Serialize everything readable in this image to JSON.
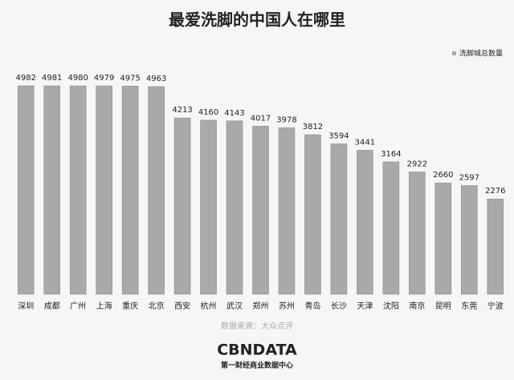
{
  "chart_data": {
    "type": "bar",
    "title": "最爱洗脚的中国人在哪里",
    "categories": [
      "深圳",
      "成都",
      "广州",
      "上海",
      "重庆",
      "北京",
      "西安",
      "杭州",
      "武汉",
      "郑州",
      "苏州",
      "青岛",
      "长沙",
      "天津",
      "沈阳",
      "南京",
      "昆明",
      "东莞",
      "宁波"
    ],
    "series": [
      {
        "name": "洗脚城总数量",
        "color": "#a9a9a9",
        "values": [
          4982,
          4981,
          4980,
          4979,
          4975,
          4963,
          4213,
          4160,
          4143,
          4017,
          3978,
          3812,
          3594,
          3441,
          3164,
          2922,
          2660,
          2597,
          2276
        ]
      }
    ],
    "legend": "top-right",
    "source": "数据来源：大众点评",
    "brand": {
      "name": "CBNDATA",
      "subtitle": "第一财经商业数据中心"
    }
  }
}
